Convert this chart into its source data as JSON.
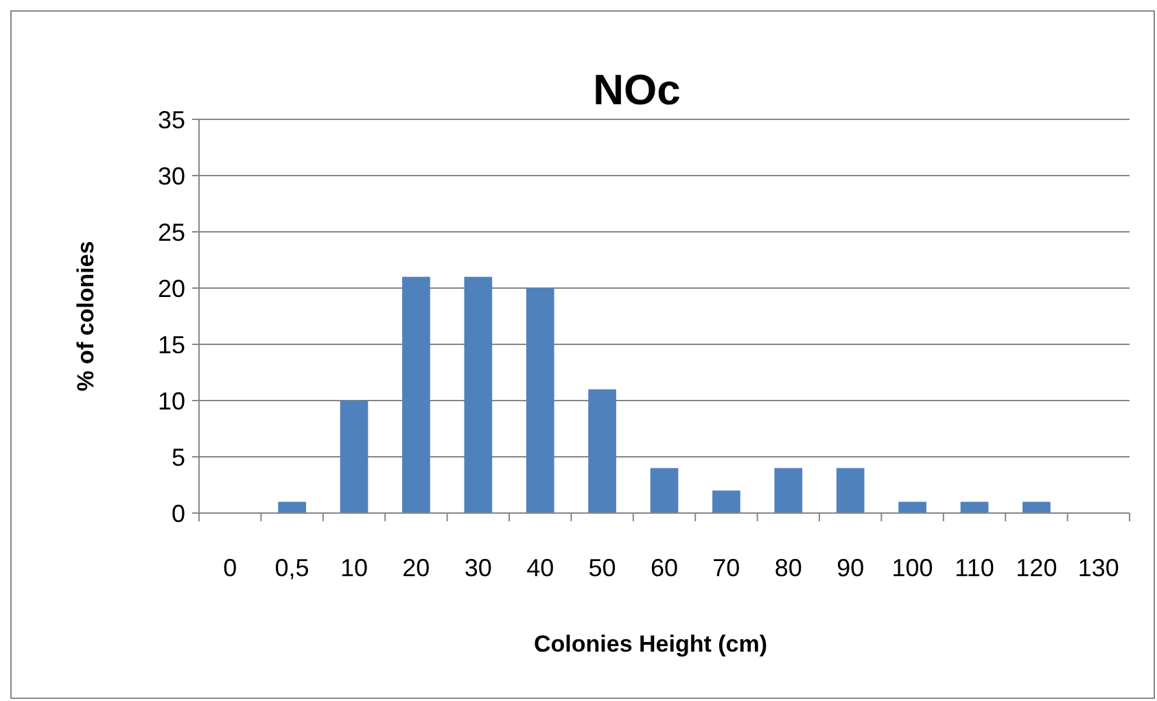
{
  "chart_data": {
    "type": "bar",
    "title": "NOc",
    "xlabel": "Colonies Height (cm)",
    "ylabel": "% of colonies",
    "categories": [
      "0",
      "0,5",
      "10",
      "20",
      "30",
      "40",
      "50",
      "60",
      "70",
      "80",
      "90",
      "100",
      "110",
      "120",
      "130"
    ],
    "values": [
      0,
      1,
      10,
      21,
      21,
      20,
      11,
      4,
      2,
      4,
      4,
      1,
      1,
      1,
      0
    ],
    "color": "#4f81bd",
    "ylim": [
      0,
      35
    ],
    "yticks": [
      0,
      5,
      10,
      15,
      20,
      25,
      30,
      35
    ],
    "grid": "y"
  }
}
